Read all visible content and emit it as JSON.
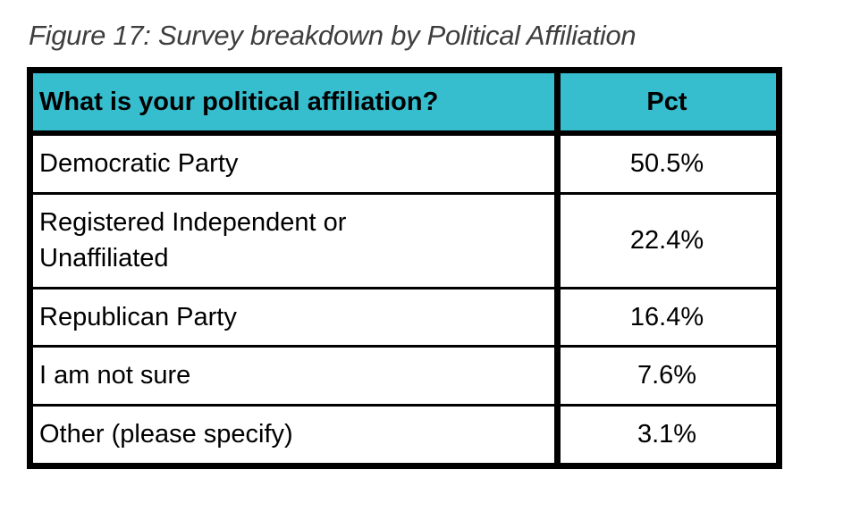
{
  "figure": {
    "title": "Figure 17: Survey breakdown by Political Affiliation"
  },
  "table": {
    "columns": [
      "What is your political affiliation?",
      "Pct"
    ],
    "rows": [
      {
        "label": "Democratic Party",
        "pct": "50.5%"
      },
      {
        "label": "Registered Independent or\nUnaffiliated",
        "pct": "22.4%"
      },
      {
        "label": "Republican Party",
        "pct": "16.4%"
      },
      {
        "label": "I am not sure",
        "pct": "7.6%"
      },
      {
        "label": "Other (please specify)",
        "pct": "3.1%"
      }
    ],
    "colors": {
      "header_bg": "#36bdce",
      "border": "#000000",
      "title_text": "#3e3e40",
      "body_text": "#000000"
    }
  },
  "chart_data": {
    "type": "table",
    "title": "Figure 17: Survey breakdown by Political Affiliation",
    "columns": [
      "What is your political affiliation?",
      "Pct"
    ],
    "categories": [
      "Democratic Party",
      "Registered Independent or Unaffiliated",
      "Republican Party",
      "I am not sure",
      "Other (please specify)"
    ],
    "values": [
      50.5,
      22.4,
      16.4,
      7.6,
      3.1
    ],
    "unit": "%"
  }
}
